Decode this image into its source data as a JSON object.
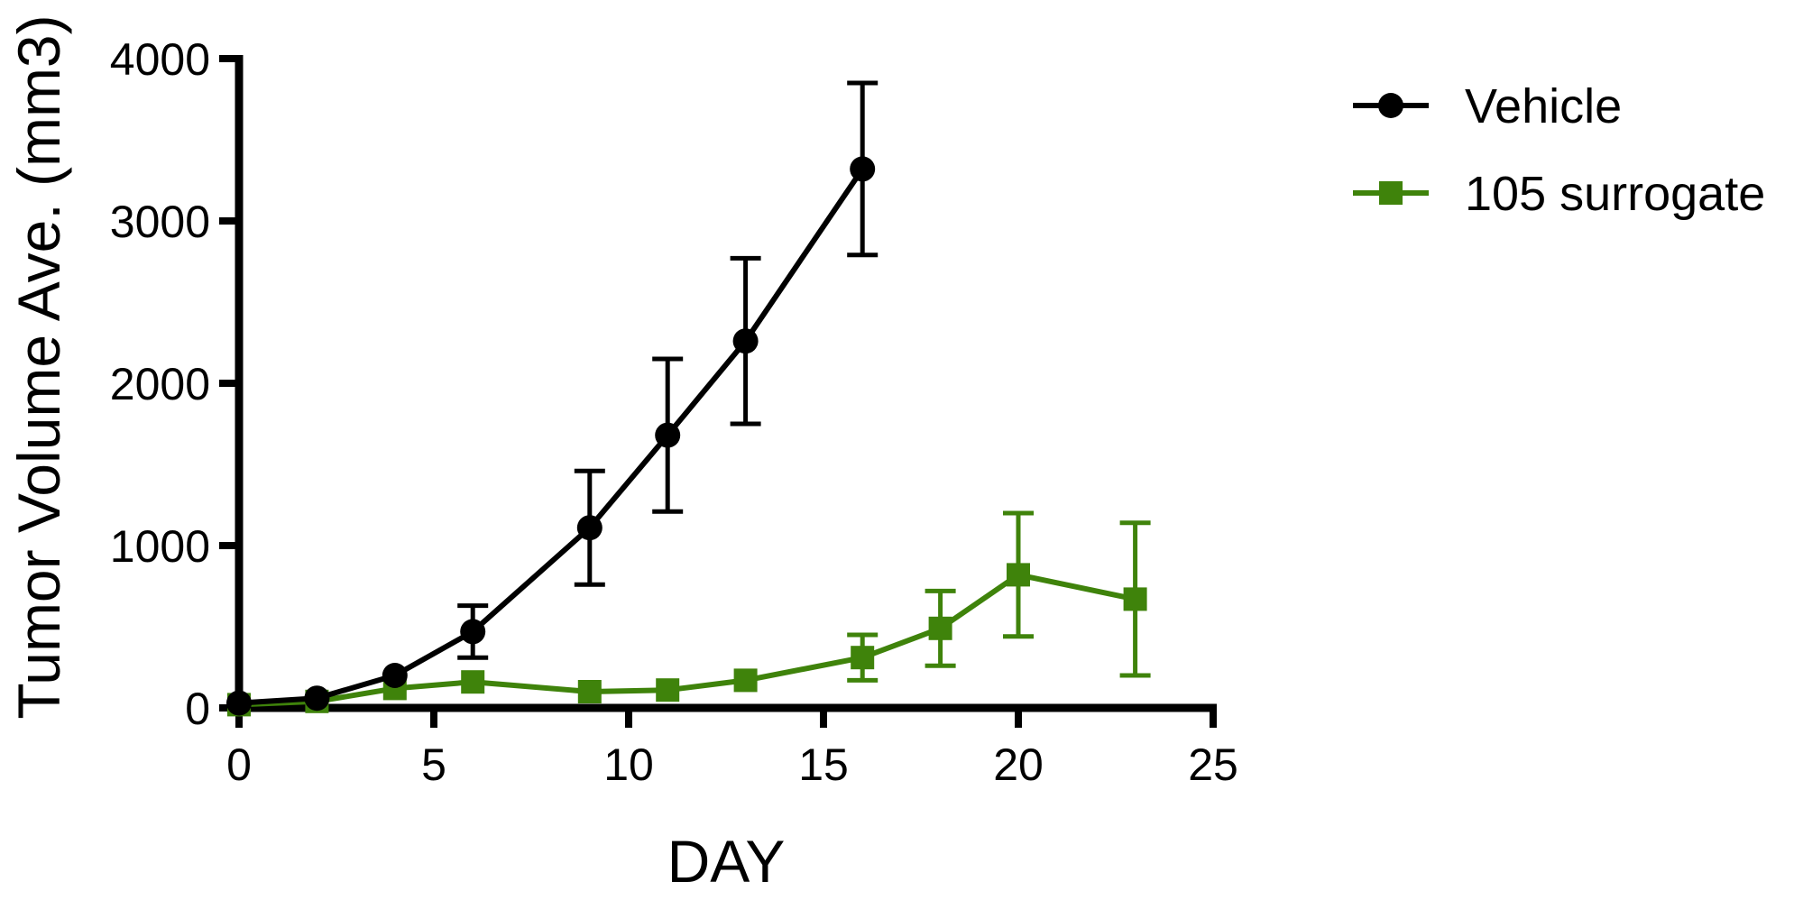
{
  "chart_data": {
    "type": "line",
    "title": "",
    "xlabel": "DAY",
    "ylabel": "Tumor Volume Ave. (mm3)",
    "xlim": [
      0,
      25
    ],
    "ylim": [
      0,
      4000
    ],
    "x_ticks": [
      0,
      5,
      10,
      15,
      20,
      25
    ],
    "x_tick_labels": [
      "0",
      "5",
      "10",
      "15",
      "20",
      "25"
    ],
    "y_ticks": [
      0,
      1000,
      2000,
      3000,
      4000
    ],
    "y_tick_labels": [
      "0",
      "1000",
      "2000",
      "3000",
      "4000"
    ],
    "grid": false,
    "legend_position": "top-right",
    "series": [
      {
        "name": "Vehicle",
        "color": "#000000",
        "marker": "circle",
        "x": [
          0,
          2,
          4,
          6,
          9,
          11,
          13,
          16
        ],
        "y": [
          30,
          60,
          200,
          470,
          1110,
          1680,
          2260,
          3320
        ],
        "error": [
          null,
          null,
          null,
          160,
          350,
          470,
          510,
          530
        ]
      },
      {
        "name": "105 surrogate",
        "color": "#3f830b",
        "marker": "square",
        "x": [
          0,
          2,
          4,
          6,
          9,
          11,
          13,
          16,
          18,
          20,
          23
        ],
        "y": [
          20,
          40,
          120,
          160,
          100,
          110,
          170,
          310,
          490,
          820,
          670
        ],
        "error": [
          null,
          null,
          null,
          null,
          null,
          null,
          null,
          140,
          230,
          380,
          470
        ]
      }
    ]
  }
}
